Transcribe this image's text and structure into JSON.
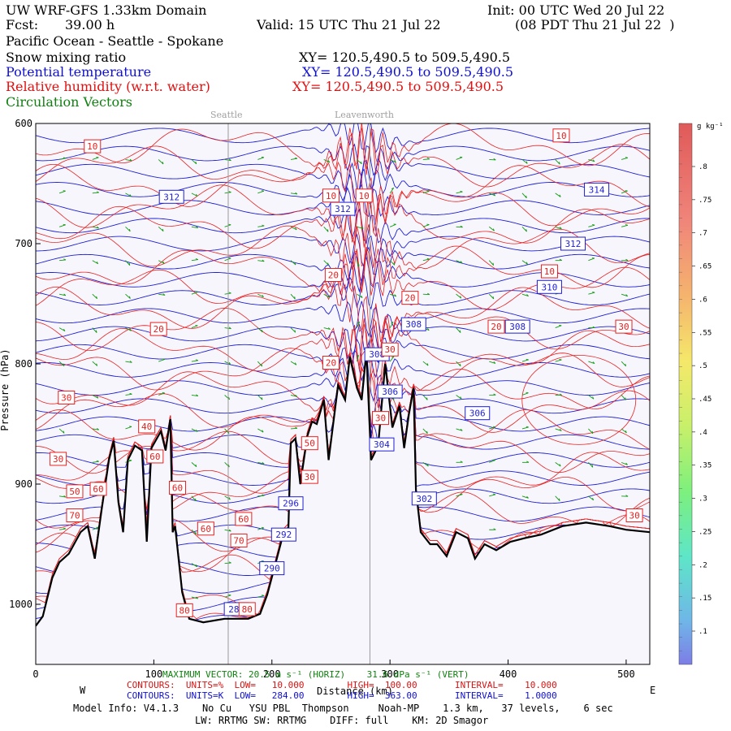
{
  "header": {
    "model": "UW WRF-GFS 1.33km Domain",
    "init": "Init: 00 UTC Wed 20 Jul 22",
    "fcst_label": "Fcst:",
    "fcst_value": "39.00 h",
    "valid": "Valid: 15 UTC Thu 21 Jul 22",
    "valid_local": "(08 PDT Thu 21 Jul 22  )",
    "region": "Pacific Ocean - Seattle - Spokane"
  },
  "fields": [
    {
      "name": "Snow mixing ratio",
      "xy": "XY= 120.5,490.5 to 509.5,490.5",
      "color": "#000000"
    },
    {
      "name": "Potential temperature",
      "xy": "XY= 120.5,490.5 to 509.5,490.5",
      "color": "#1010d0"
    },
    {
      "name": "Relative humidity (w.r.t. water)",
      "xy": "XY= 120.5,490.5 to 509.5,490.5",
      "color": "#e01010"
    },
    {
      "name": "Circulation Vectors",
      "xy": "",
      "color": "#108010"
    }
  ],
  "locations": {
    "seattle": "Seattle",
    "leavenworth": "Leavenworth"
  },
  "axes": {
    "x_label": "Distance (km)",
    "y_label": "Pressure (hPa)",
    "west": "W",
    "east": "E",
    "colorbar_unit": "g kg⁻¹"
  },
  "footer": {
    "max_vector": "MAXIMUM VECTOR: 20.5 m s⁻¹ (HORIZ)    31.6 dPa s⁻¹ (VERT)",
    "rh_contours": "CONTOURS:  UNITS=%  LOW=   10.000        HIGH=  100.00       INTERVAL=    10.000",
    "th_contours": "CONTOURS:  UNITS=K  LOW=   284.00        HIGH=  363.00       INTERVAL=    1.0000",
    "model_info": "Model Info: V4.1.3    No Cu   YSU PBL  Thompson     Noah-MP    1.3 km,   37 levels,    6 sec",
    "model_info2": "LW: RRTMG SW: RRTMG    DIFF: full    KM: 2D Smagor"
  },
  "chart_data": {
    "type": "cross-section contour",
    "x_ticks": [
      0,
      100,
      200,
      300,
      400,
      500
    ],
    "y_ticks": [
      600,
      700,
      800,
      900,
      1000
    ],
    "xlim": [
      0,
      520
    ],
    "ylim": [
      1050,
      600
    ],
    "colorbar_ticks": [
      ".1",
      ".15",
      ".2",
      ".25",
      ".3",
      ".35",
      ".4",
      ".45",
      ".5",
      ".55",
      ".6",
      ".65",
      ".7",
      ".75",
      ".8"
    ],
    "terrain": [
      [
        0,
        1018
      ],
      [
        6,
        1010
      ],
      [
        14,
        978
      ],
      [
        20,
        965
      ],
      [
        28,
        958
      ],
      [
        38,
        940
      ],
      [
        44,
        935
      ],
      [
        50,
        962
      ],
      [
        56,
        920
      ],
      [
        62,
        880
      ],
      [
        66,
        864
      ],
      [
        70,
        915
      ],
      [
        74,
        940
      ],
      [
        78,
        880
      ],
      [
        84,
        868
      ],
      [
        90,
        872
      ],
      [
        94,
        948
      ],
      [
        98,
        870
      ],
      [
        106,
        856
      ],
      [
        110,
        872
      ],
      [
        114,
        846
      ],
      [
        116,
        940
      ],
      [
        118,
        935
      ],
      [
        124,
        990
      ],
      [
        130,
        1012
      ],
      [
        142,
        1015
      ],
      [
        160,
        1012
      ],
      [
        180,
        1012
      ],
      [
        190,
        1008
      ],
      [
        196,
        992
      ],
      [
        202,
        970
      ],
      [
        210,
        940
      ],
      [
        214,
        936
      ],
      [
        216,
        866
      ],
      [
        220,
        862
      ],
      [
        224,
        900
      ],
      [
        230,
        860
      ],
      [
        234,
        848
      ],
      [
        238,
        850
      ],
      [
        244,
        830
      ],
      [
        248,
        880
      ],
      [
        256,
        818
      ],
      [
        262,
        830
      ],
      [
        266,
        794
      ],
      [
        272,
        820
      ],
      [
        276,
        830
      ],
      [
        280,
        790
      ],
      [
        284,
        880
      ],
      [
        290,
        868
      ],
      [
        296,
        800
      ],
      [
        302,
        853
      ],
      [
        308,
        835
      ],
      [
        312,
        870
      ],
      [
        316,
        842
      ],
      [
        320,
        820
      ],
      [
        322,
        905
      ],
      [
        326,
        940
      ],
      [
        334,
        950
      ],
      [
        340,
        950
      ],
      [
        348,
        960
      ],
      [
        356,
        940
      ],
      [
        366,
        945
      ],
      [
        372,
        962
      ],
      [
        380,
        950
      ],
      [
        390,
        955
      ],
      [
        402,
        948
      ],
      [
        414,
        945
      ],
      [
        428,
        942
      ],
      [
        446,
        935
      ],
      [
        466,
        932
      ],
      [
        486,
        935
      ],
      [
        500,
        938
      ],
      [
        520,
        940
      ]
    ],
    "theta_labels": [
      {
        "v": "312",
        "x": 115,
        "p": 661
      },
      {
        "v": "314",
        "x": 475,
        "p": 655
      },
      {
        "v": "312",
        "x": 260,
        "p": 671
      },
      {
        "v": "312",
        "x": 455,
        "p": 700
      },
      {
        "v": "310",
        "x": 435,
        "p": 736
      },
      {
        "v": "308",
        "x": 320,
        "p": 767
      },
      {
        "v": "308",
        "x": 408,
        "p": 769
      },
      {
        "v": "308",
        "x": 289,
        "p": 792
      },
      {
        "v": "306",
        "x": 300,
        "p": 823
      },
      {
        "v": "306",
        "x": 374,
        "p": 841
      },
      {
        "v": "304",
        "x": 293,
        "p": 867
      },
      {
        "v": "302",
        "x": 329,
        "p": 912
      },
      {
        "v": "296",
        "x": 216,
        "p": 916
      },
      {
        "v": "292",
        "x": 210,
        "p": 942
      },
      {
        "v": "290",
        "x": 200,
        "p": 970
      },
      {
        "v": "288",
        "x": 170,
        "p": 1004
      }
    ],
    "rh_labels": [
      {
        "v": "10",
        "x": 48,
        "p": 619
      },
      {
        "v": "10",
        "x": 445,
        "p": 610
      },
      {
        "v": "10",
        "x": 250,
        "p": 660
      },
      {
        "v": "10",
        "x": 278,
        "p": 660
      },
      {
        "v": "10",
        "x": 435,
        "p": 723
      },
      {
        "v": "20",
        "x": 252,
        "p": 726
      },
      {
        "v": "20",
        "x": 317,
        "p": 745
      },
      {
        "v": "20",
        "x": 390,
        "p": 769
      },
      {
        "v": "30",
        "x": 498,
        "p": 769
      },
      {
        "v": "20",
        "x": 104,
        "p": 771
      },
      {
        "v": "30",
        "x": 300,
        "p": 788
      },
      {
        "v": "20",
        "x": 250,
        "p": 799
      },
      {
        "v": "30",
        "x": 26,
        "p": 828
      },
      {
        "v": "30",
        "x": 292,
        "p": 845
      },
      {
        "v": "40",
        "x": 94,
        "p": 852
      },
      {
        "v": "50",
        "x": 232,
        "p": 866
      },
      {
        "v": "30",
        "x": 19,
        "p": 879
      },
      {
        "v": "60",
        "x": 101,
        "p": 877
      },
      {
        "v": "30",
        "x": 232,
        "p": 894
      },
      {
        "v": "50",
        "x": 33,
        "p": 906
      },
      {
        "v": "60",
        "x": 53,
        "p": 904
      },
      {
        "v": "60",
        "x": 120,
        "p": 903
      },
      {
        "v": "70",
        "x": 33,
        "p": 926
      },
      {
        "v": "60",
        "x": 176,
        "p": 929
      },
      {
        "v": "60",
        "x": 144,
        "p": 937
      },
      {
        "v": "70",
        "x": 172,
        "p": 947
      },
      {
        "v": "30",
        "x": 507,
        "p": 926
      },
      {
        "v": "80",
        "x": 126,
        "p": 1005
      },
      {
        "v": "80",
        "x": 179,
        "p": 1004
      }
    ]
  }
}
